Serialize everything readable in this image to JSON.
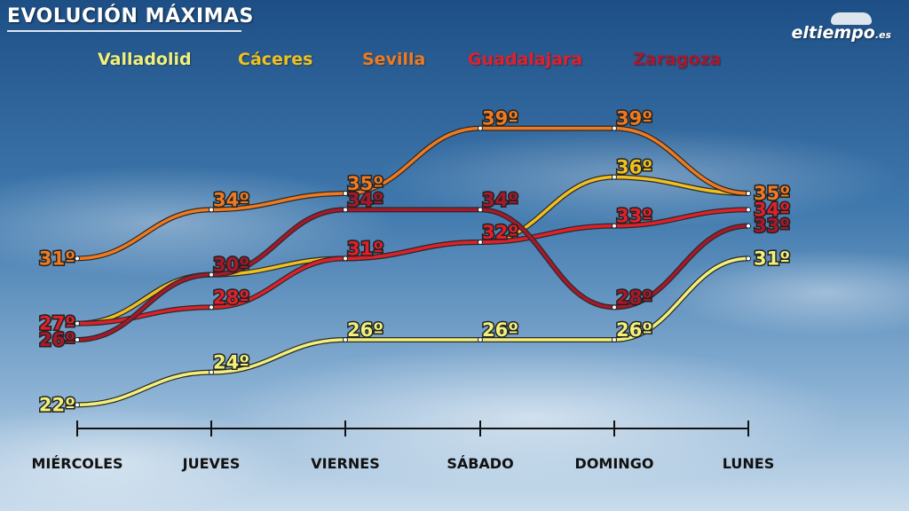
{
  "header": {
    "title": "EVOLUCIÓN MÁXIMAS"
  },
  "logo": {
    "text": "eltiempo",
    "suffix": ".es"
  },
  "chart_data": {
    "type": "line",
    "title": "EVOLUCIÓN MÁXIMAS",
    "categories": [
      "MIÉRCOLES",
      "JUEVES",
      "VIERNES",
      "SÁBADO",
      "DOMINGO",
      "LUNES"
    ],
    "unit": "º",
    "ylim": [
      20,
      41
    ],
    "grid": false,
    "legend": "top",
    "series": [
      {
        "name": "Valladolid",
        "color": "#f2f07a",
        "values": [
          22,
          24,
          26,
          26,
          26,
          31
        ]
      },
      {
        "name": "Cáceres",
        "color": "#f0c020",
        "values": [
          27,
          30,
          31,
          32,
          36,
          35
        ]
      },
      {
        "name": "Sevilla",
        "color": "#ef7a1f",
        "values": [
          31,
          34,
          35,
          39,
          39,
          35
        ]
      },
      {
        "name": "Guadalajara",
        "color": "#e0202a",
        "values": [
          27,
          28,
          31,
          32,
          33,
          34
        ]
      },
      {
        "name": "Zaragoza",
        "color": "#a8182a",
        "values": [
          26,
          30,
          34,
          34,
          28,
          33
        ]
      }
    ]
  }
}
